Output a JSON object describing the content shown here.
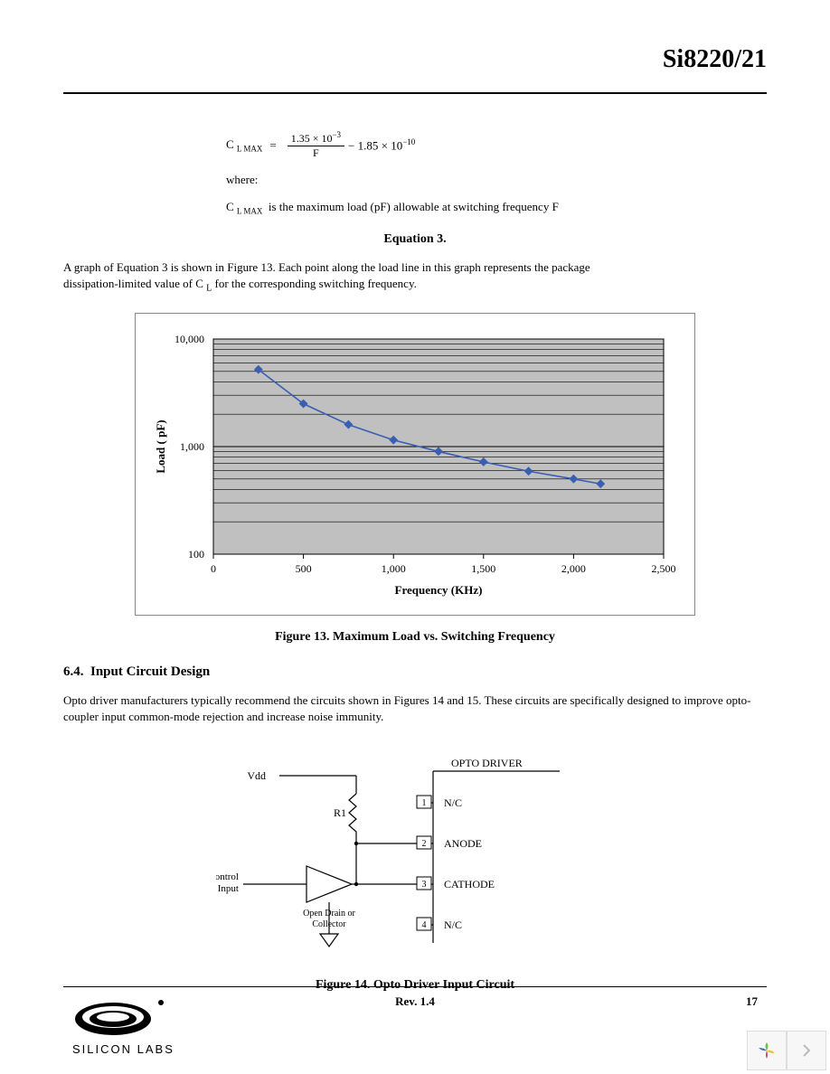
{
  "header": {
    "title": "Si8220/21"
  },
  "equation": {
    "lhs_symbol": "C",
    "lhs_sub": "L MAX",
    "eq_sign": "=",
    "num_top": "1.35 × 10",
    "num_top_sup": "−3",
    "num_bot": "F",
    "tail": "− 1.85 × 10",
    "tail_sup": "−10",
    "where_label": "where:",
    "def_symbol": "C",
    "def_sub": "L MAX",
    "def_text": "is the maximum load (pF) allowable at switching frequency F",
    "caption": "Equation 3."
  },
  "para1_a": "A graph of Equation 3 is shown in Figure 13. Each point along the load line in this graph represents the package",
  "para1_b_pre": "dissipation-limited value of C",
  "para1_b_sub": "L",
  "para1_b_post": " for the corresponding switching frequency.",
  "chart": {
    "type": "line-log-y",
    "ylabel": "Load (     pF)",
    "xlabel": "Frequency (KHz)",
    "x_ticks": [
      0,
      500,
      1000,
      1500,
      2000,
      2500
    ],
    "x_tick_labels": [
      "0",
      "500",
      "1,000",
      "1,500",
      "2,000",
      "2,500"
    ],
    "y_ticks_log": [
      100,
      1000,
      10000
    ],
    "y_tick_labels": [
      "100",
      "1,000",
      "10,000"
    ],
    "xlim": [
      0,
      2500
    ],
    "ylim_log": [
      100,
      10000
    ],
    "points": [
      {
        "x": 250,
        "y": 5200
      },
      {
        "x": 500,
        "y": 2500
      },
      {
        "x": 750,
        "y": 1600
      },
      {
        "x": 1000,
        "y": 1150
      },
      {
        "x": 1250,
        "y": 900
      },
      {
        "x": 1500,
        "y": 720
      },
      {
        "x": 1750,
        "y": 590
      },
      {
        "x": 2000,
        "y": 500
      },
      {
        "x": 2150,
        "y": 450
      }
    ],
    "line_color": "#3a5fb0",
    "marker_color": "#3a5fb0",
    "marker_size": 5,
    "line_width": 1.6,
    "plot_bg": "#c0c0c0",
    "grid_color": "#000000",
    "outer_border_color": "#888888",
    "axis_font_size": 12,
    "label_font_size": 13,
    "caption": "Figure 13. Maximum Load vs. Switching Frequency"
  },
  "section": {
    "number": "6.4.",
    "title": "Input Circuit Design"
  },
  "para2": "Opto driver manufacturers typically recommend the circuits shown in Figures 14 and 15. These circuits are specifically designed to improve opto-coupler input common-mode rejection and increase noise immunity.",
  "circuit": {
    "vdd_label": "Vdd",
    "r1_label": "R1",
    "ctrl_label_1": "Control",
    "ctrl_label_2": "Input",
    "driver_label_1": "Open Drain or",
    "driver_label_2": "Collector",
    "header_label": "OPTO DRIVER",
    "pins": [
      {
        "num": "1",
        "name": "N/C"
      },
      {
        "num": "2",
        "name": "ANODE"
      },
      {
        "num": "3",
        "name": "CATHODE"
      },
      {
        "num": "4",
        "name": "N/C"
      }
    ],
    "caption": "Figure 14. Opto Driver Input Circuit"
  },
  "footer": {
    "rev": "Rev. 1.4",
    "page": "17",
    "logo_text": "SILICON LABS"
  }
}
